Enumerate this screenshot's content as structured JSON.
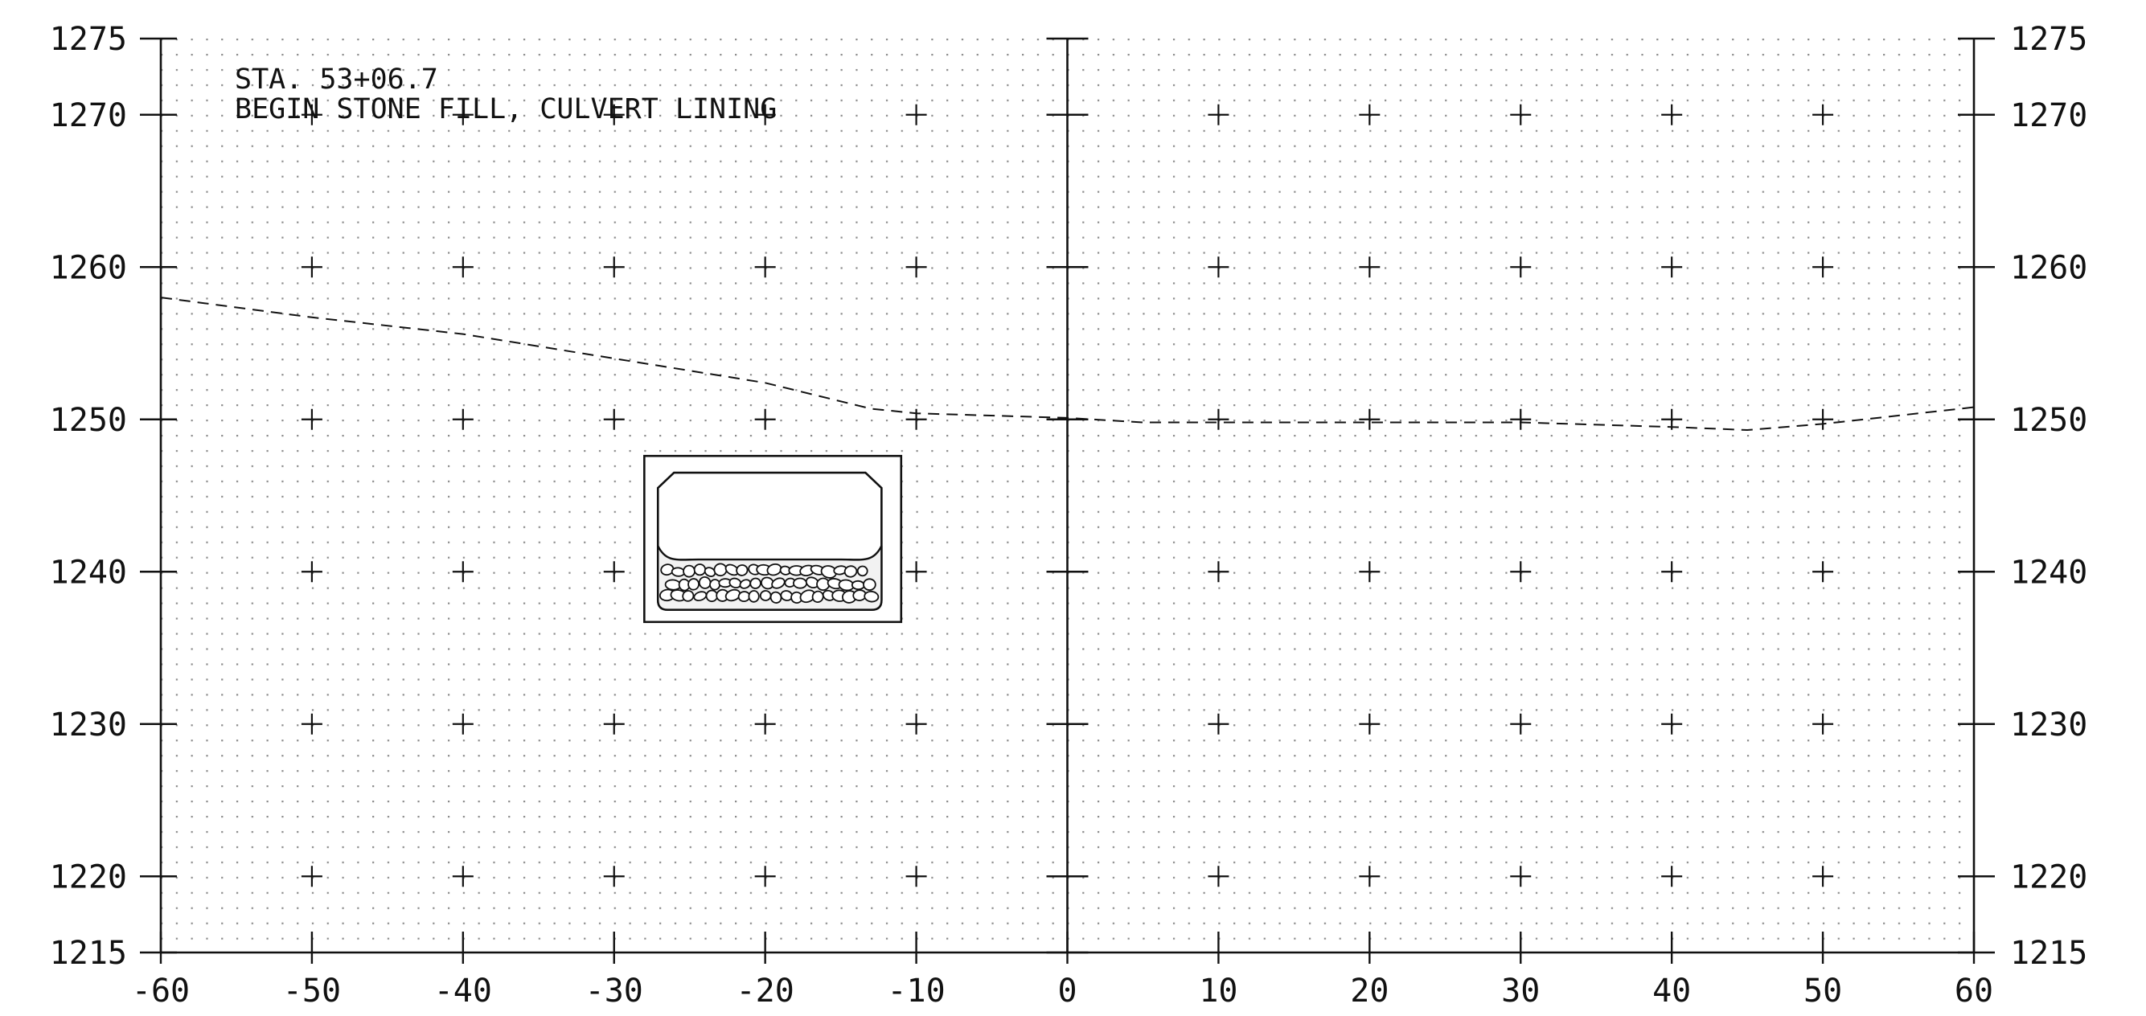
{
  "notes": {
    "line1": "STA. 53+06.7",
    "line2": "BEGIN STONE FILL, CULVERT LINING"
  },
  "offset_axis": {
    "ticks": [
      -60,
      -50,
      -40,
      -30,
      -20,
      -10,
      0,
      10,
      20,
      30,
      40,
      50,
      60
    ]
  },
  "elevation_axis": {
    "left_labels": [
      1275,
      1270,
      1260,
      1250,
      1240,
      1230,
      1220,
      1215
    ],
    "right_labels": [
      1275,
      1270,
      1260,
      1250,
      1240,
      1230,
      1220,
      1215
    ]
  },
  "ground_profile": {
    "style": "dashed",
    "points": [
      [
        -60,
        1258.0
      ],
      [
        -50,
        1256.7
      ],
      [
        -40,
        1255.6
      ],
      [
        -30,
        1254.0
      ],
      [
        -20,
        1252.4
      ],
      [
        -13,
        1250.7
      ],
      [
        -10,
        1250.4
      ],
      [
        0,
        1250.1
      ],
      [
        5,
        1249.8
      ],
      [
        10,
        1249.8
      ],
      [
        20,
        1249.8
      ],
      [
        30,
        1249.8
      ],
      [
        40,
        1249.5
      ],
      [
        45,
        1249.3
      ],
      [
        50,
        1249.7
      ],
      [
        60,
        1250.8
      ]
    ]
  },
  "culvert": {
    "outer_box": {
      "x1": -28.0,
      "x2": -11.0,
      "y_top": 1247.6,
      "y_bottom": 1236.7
    },
    "inner_barrel": {
      "x_left": -27.1,
      "x_right": -12.3,
      "y_top": 1246.5,
      "chamfer_top": 1245.5,
      "fill_edge": 1241.7,
      "fill_level": 1240.8,
      "y_bottom": 1237.5
    },
    "stone_fill": "stone-fill-hatch"
  },
  "colors": {
    "ink": "#111111",
    "grid_dot": "#8a8a8a",
    "background": "#ffffff"
  }
}
